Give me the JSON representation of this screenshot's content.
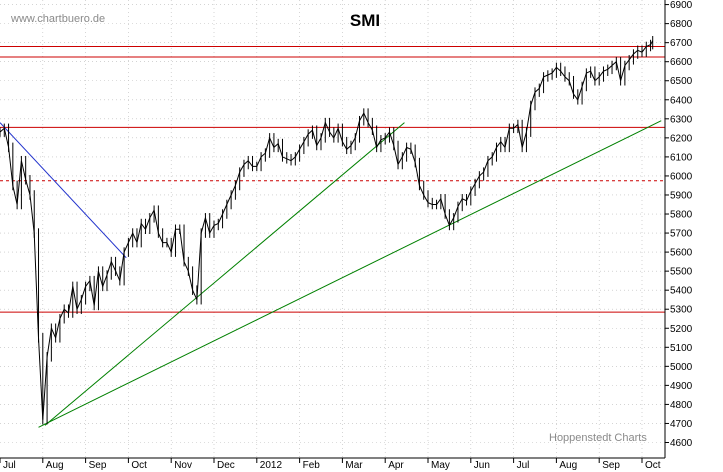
{
  "chart_data": {
    "type": "line",
    "title": "SMI",
    "watermark_top": "www.chartbuero.de",
    "watermark_bottom": "Hoppenstedt Charts",
    "ylim": [
      4560,
      6930
    ],
    "y_ticks": [
      4600,
      4700,
      4800,
      4900,
      5000,
      5100,
      5200,
      5300,
      5400,
      5500,
      5600,
      5700,
      5800,
      5900,
      6000,
      6100,
      6200,
      6300,
      6400,
      6500,
      6600,
      6700,
      6800,
      6900
    ],
    "x_ticks": [
      "Jul",
      "Aug",
      "Sep",
      "Oct",
      "Nov",
      "Dec",
      "2012",
      "Feb",
      "Mar",
      "Apr",
      "May",
      "Jun",
      "Jul",
      "Aug",
      "Sep",
      "Oct"
    ],
    "x_range_months": [
      0,
      15.45
    ],
    "grid": true,
    "colors": {
      "price": "#000000",
      "horizontal": "#cc0000",
      "support": "#008000",
      "downtrend": "#2233cc",
      "grid": "#bbbbbb"
    },
    "horizontal_levels": [
      {
        "value": 6680,
        "style": "solid"
      },
      {
        "value": 6625,
        "style": "solid"
      },
      {
        "value": 6255,
        "style": "solid"
      },
      {
        "value": 5975,
        "style": "dashed"
      },
      {
        "value": 5285,
        "style": "solid"
      }
    ],
    "trendlines": [
      {
        "color": "downtrend",
        "from": [
          0.0,
          6280
        ],
        "to": [
          2.95,
          5570
        ]
      },
      {
        "color": "support",
        "from": [
          0.9,
          4680
        ],
        "to": [
          15.45,
          6290
        ]
      },
      {
        "color": "support",
        "from": [
          1.05,
          4690
        ],
        "to": [
          9.45,
          6280
        ]
      }
    ],
    "series": [
      {
        "x": [
          0.0,
          0.1,
          0.2,
          0.3,
          0.4,
          0.5,
          0.6,
          0.7,
          0.8,
          0.9,
          1.0,
          1.1,
          1.2,
          1.3,
          1.4,
          1.5,
          1.6,
          1.7,
          1.8,
          1.9,
          2.0,
          2.1,
          2.2,
          2.3,
          2.4,
          2.5,
          2.6,
          2.7,
          2.8,
          2.9,
          3.0,
          3.1,
          3.2,
          3.3,
          3.4,
          3.5,
          3.6,
          3.7,
          3.8,
          3.9,
          4.0,
          4.1,
          4.2,
          4.3,
          4.4,
          4.5,
          4.6,
          4.7,
          4.8,
          4.9,
          5.0,
          5.1,
          5.2,
          5.3,
          5.4,
          5.5,
          5.6,
          5.7,
          5.8,
          5.9,
          6.0,
          6.1,
          6.2,
          6.3,
          6.4,
          6.5,
          6.6,
          6.7,
          6.8,
          6.9,
          7.0,
          7.1,
          7.2,
          7.3,
          7.4,
          7.5,
          7.6,
          7.7,
          7.8,
          7.9,
          8.0,
          8.1,
          8.2,
          8.3,
          8.4,
          8.5,
          8.6,
          8.7,
          8.8,
          8.9,
          9.0,
          9.1,
          9.2,
          9.3,
          9.4,
          9.5,
          9.6,
          9.7,
          9.8,
          9.9,
          10.0,
          10.1,
          10.2,
          10.3,
          10.4,
          10.5,
          10.6,
          10.7,
          10.8,
          10.9,
          11.0,
          11.1,
          11.2,
          11.3,
          11.4,
          11.5,
          11.6,
          11.7,
          11.8,
          11.9,
          12.0,
          12.1,
          12.2,
          12.3,
          12.4,
          12.5,
          12.6,
          12.7,
          12.8,
          12.9,
          13.0,
          13.1,
          13.2,
          13.3,
          13.4,
          13.5,
          13.6,
          13.7,
          13.8,
          13.9,
          14.0,
          14.1,
          14.2,
          14.3,
          14.4,
          14.5,
          14.6,
          14.7,
          14.8,
          14.9,
          15.0,
          15.1,
          15.2,
          15.25
        ],
        "y": [
          6230,
          6250,
          6150,
          5950,
          5850,
          6080,
          5980,
          5900,
          5700,
          5150,
          4720,
          5050,
          5200,
          5150,
          5250,
          5300,
          5280,
          5420,
          5300,
          5350,
          5420,
          5450,
          5320,
          5500,
          5420,
          5480,
          5550,
          5500,
          5450,
          5600,
          5650,
          5700,
          5650,
          5750,
          5720,
          5780,
          5820,
          5700,
          5650,
          5650,
          5600,
          5720,
          5720,
          5550,
          5500,
          5400,
          5350,
          5700,
          5780,
          5700,
          5740,
          5750,
          5800,
          5850,
          5900,
          5950,
          6020,
          6060,
          6080,
          6050,
          6050,
          6100,
          6120,
          6200,
          6150,
          6170,
          6100,
          6090,
          6080,
          6100,
          6140,
          6180,
          6220,
          6240,
          6160,
          6200,
          6280,
          6230,
          6200,
          6250,
          6180,
          6140,
          6160,
          6200,
          6290,
          6330,
          6280,
          6240,
          6150,
          6190,
          6200,
          6230,
          6160,
          6060,
          6100,
          6150,
          6140,
          6070,
          5950,
          5900,
          5860,
          5850,
          5850,
          5880,
          5800,
          5740,
          5780,
          5840,
          5880,
          5870,
          5920,
          5960,
          6000,
          6020,
          6080,
          6100,
          6150,
          6180,
          6150,
          6250,
          6250,
          6270,
          6150,
          6230,
          6370,
          6440,
          6460,
          6520,
          6530,
          6540,
          6570,
          6550,
          6520,
          6500,
          6430,
          6400,
          6470,
          6540,
          6550,
          6500,
          6520,
          6550,
          6560,
          6580,
          6600,
          6500,
          6580,
          6610,
          6640,
          6660,
          6650,
          6680,
          6690,
          6710
        ]
      }
    ]
  }
}
